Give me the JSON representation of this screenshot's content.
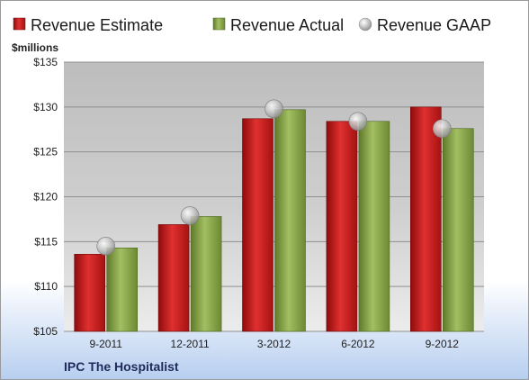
{
  "chart_data": {
    "type": "bar",
    "categories": [
      "9-2011",
      "12-2011",
      "3-2012",
      "6-2012",
      "9-2012"
    ],
    "series": [
      {
        "name": "Revenue Estimate",
        "kind": "bar",
        "color": "#d11f1f",
        "values": [
          113.6,
          116.9,
          128.7,
          128.4,
          130.0
        ]
      },
      {
        "name": "Revenue Actual",
        "kind": "bar",
        "color": "#8aa64a",
        "values": [
          114.3,
          117.8,
          129.7,
          128.4,
          127.6
        ]
      },
      {
        "name": "Revenue GAAP",
        "kind": "marker",
        "color": "#b8b8b8",
        "values": [
          114.5,
          117.9,
          129.8,
          128.4,
          127.6
        ]
      }
    ],
    "ylabel": "$millions",
    "ylim": [
      105,
      135
    ],
    "yticks": [
      "$105",
      "$110",
      "$115",
      "$120",
      "$125",
      "$130",
      "$135"
    ],
    "ytick_values": [
      105,
      110,
      115,
      120,
      125,
      130,
      135
    ],
    "grid": true,
    "legend_position": "top",
    "company": "IPC The Hospitalist"
  }
}
